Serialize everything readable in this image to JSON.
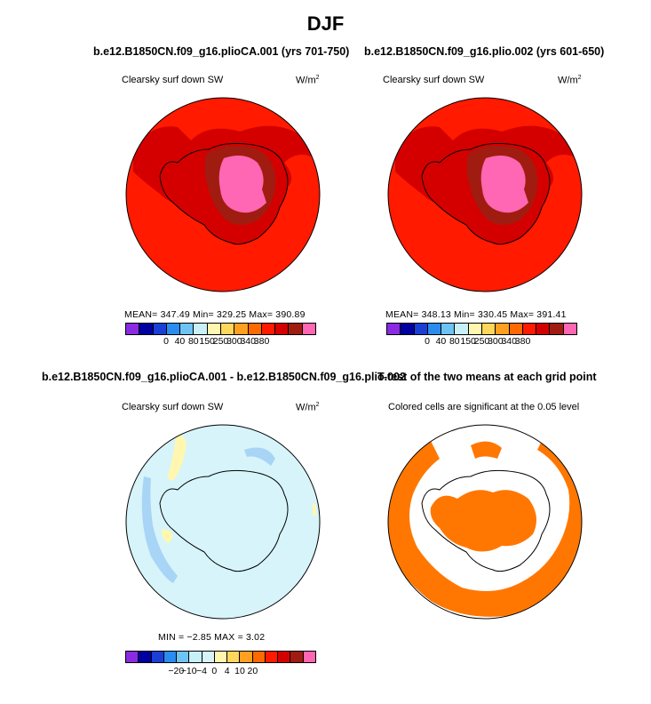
{
  "main_title": "DJF",
  "panels": [
    {
      "title": "b.e12.B1850CN.f09_g16.plioCA.001 (yrs 701-750)",
      "subtitle": "Clearsky surf down SW",
      "units": "W/m",
      "units_sup": "2",
      "stats": "MEAN=  347.49   Min=  329.25   Max=  390.89",
      "colorbar_labels": [
        "0",
        "40",
        "80",
        "150",
        "250",
        "300",
        "340",
        "380"
      ]
    },
    {
      "title": "b.e12.B1850CN.f09_g16.plio.002 (yrs 601-650)",
      "subtitle": "Clearsky surf down SW",
      "units": "W/m",
      "units_sup": "2",
      "stats": "MEAN=  348.13   Min=  330.45   Max=  391.41",
      "colorbar_labels": [
        "0",
        "40",
        "80",
        "150",
        "250",
        "300",
        "340",
        "380"
      ]
    },
    {
      "title": "b.e12.B1850CN.f09_g16.plioCA.001 - b.e12.B1850CN.f09_g16.plio.002",
      "subtitle": "Clearsky surf down SW",
      "units": "W/m",
      "units_sup": "2",
      "stats": "MIN =   −2.85  MAX =    3.02",
      "colorbar_labels": [
        "−20",
        "−10",
        "−4",
        "0",
        "4",
        "10",
        "20"
      ]
    },
    {
      "title": "T-test of the two means at each grid point",
      "subtitle": "Colored cells are significant at the 0.05 level"
    }
  ],
  "colors": {
    "abs_scale": [
      "#8a2be2",
      "#0000a0",
      "#1a3fd6",
      "#2b8cf0",
      "#6ec3f5",
      "#c8f0f8",
      "#fff7b0",
      "#ffd75a",
      "#ffa020",
      "#ff6a00",
      "#ff1a00",
      "#d40000",
      "#a01c10",
      "#ff66b3"
    ],
    "diff_scale": [
      "#8a2be2",
      "#0000a0",
      "#1a3fd6",
      "#2b8cf0",
      "#6ec3f5",
      "#c8f0f8",
      "#d6f4fa",
      "#fff7b0",
      "#ffd75a",
      "#ffa020",
      "#ff6a00",
      "#ff1a00",
      "#d40000",
      "#a01c10",
      "#ff66b3"
    ],
    "ocean_340": "#ff1a00",
    "land_300": "#d40000",
    "plateau_340": "#a01c10",
    "dome_380": "#ff66b3",
    "diff_background": "#d6f4fa",
    "significance": "#ff7700"
  }
}
